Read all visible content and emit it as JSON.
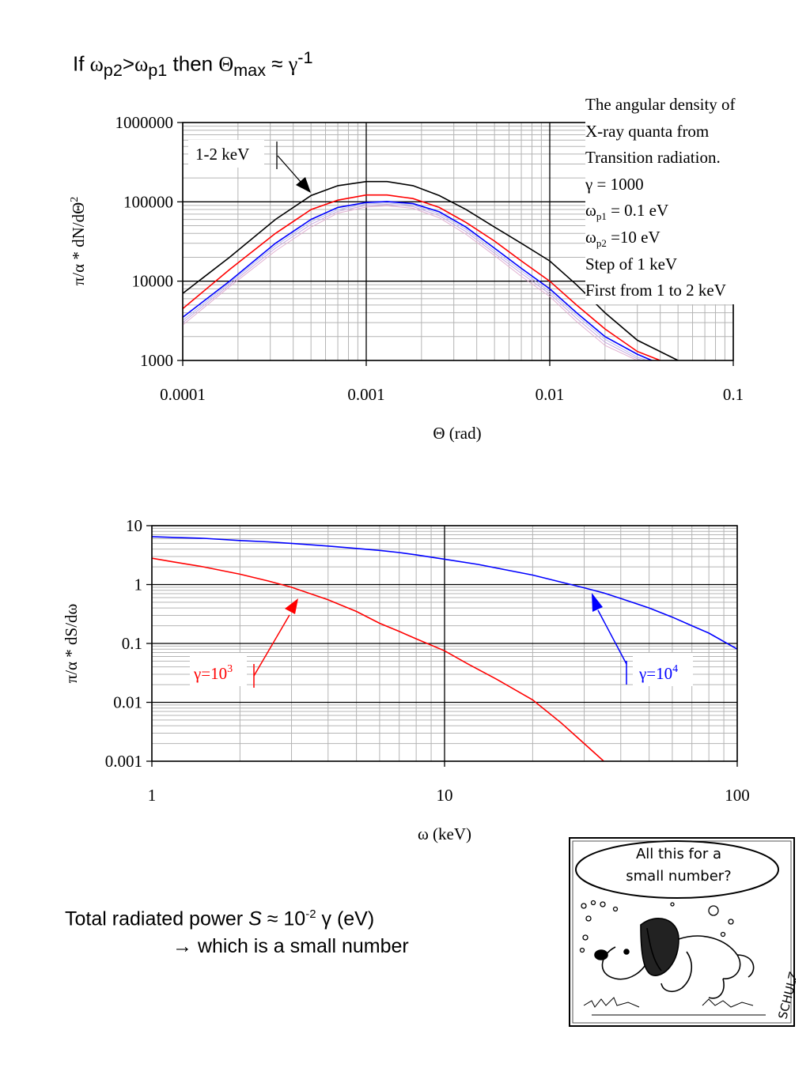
{
  "slide": {
    "title": {
      "prefix": "If ",
      "w": "ω",
      "p2": "p2",
      "gt": ">",
      "p1": "p1",
      "then": " then ",
      "theta": "Θ",
      "max": "max",
      "approx": " ≈ ",
      "gamma": "γ",
      "exp": "-1"
    },
    "footer": {
      "line1": {
        "a": "Total radiated power ",
        "S": "S",
        "b": " ≈ 10",
        "exp": "-2",
        "c": " γ (eV)"
      },
      "line2": "→ which is a small number"
    },
    "cartoon": {
      "bubble_line1": "All this for a",
      "bubble_line2": "small number?",
      "signature": "SCHULZ"
    }
  },
  "chart_data": [
    {
      "type": "line",
      "title": "",
      "xlabel": "Θ (rad)",
      "ylabel_parts": {
        "main": "π/α *  dN/dΘ",
        "exp": "2"
      },
      "xscale": "log",
      "yscale": "log",
      "xlim": [
        0.0001,
        0.1
      ],
      "ylim": [
        1000,
        1000000
      ],
      "xticks": [
        "0.0001",
        "0.001",
        "0.01",
        "0.1"
      ],
      "yticks": [
        "1000",
        "10000",
        "100000",
        "1000000"
      ],
      "grid": true,
      "info_box": {
        "line1": "The angular density of",
        "line2": "X-ray quanta from",
        "line3": "Transition radiation.",
        "line4": "γ = 1000",
        "line5": {
          "w": "ω",
          "sub": "p1",
          "rest": " = 0.1 eV"
        },
        "line6": {
          "w": "ω",
          "sub": "p2",
          "rest": " =10 eV"
        },
        "line7": "Step of 1 keV",
        "line8": "First from 1 to 2  keV"
      },
      "annotation": "1-2 keV",
      "series": [
        {
          "color": "#000000",
          "x": [
            0.0001,
            0.00018,
            0.00032,
            0.0005,
            0.0007,
            0.001,
            0.0013,
            0.0018,
            0.0025,
            0.0035,
            0.005,
            0.007,
            0.01,
            0.014,
            0.02,
            0.03,
            0.05
          ],
          "y": [
            7000,
            20000,
            60000,
            120000,
            160000,
            180000,
            180000,
            160000,
            120000,
            80000,
            48000,
            30000,
            18000,
            9000,
            4000,
            1800,
            1000
          ]
        },
        {
          "color": "#ff0000",
          "x": [
            0.0001,
            0.00018,
            0.00032,
            0.0005,
            0.0007,
            0.001,
            0.0013,
            0.0018,
            0.0025,
            0.0035,
            0.005,
            0.007,
            0.01,
            0.014,
            0.02,
            0.03,
            0.04
          ],
          "y": [
            4500,
            14000,
            40000,
            80000,
            105000,
            122000,
            122000,
            110000,
            85000,
            55000,
            32000,
            18000,
            10000,
            5000,
            2500,
            1300,
            1000
          ]
        },
        {
          "color": "#0000ff",
          "x": [
            0.0001,
            0.00018,
            0.00032,
            0.0005,
            0.0007,
            0.001,
            0.0013,
            0.0018,
            0.0025,
            0.0035,
            0.005,
            0.007,
            0.01,
            0.014,
            0.02,
            0.03,
            0.036
          ],
          "y": [
            3500,
            10000,
            30000,
            60000,
            85000,
            98000,
            101000,
            95000,
            75000,
            48000,
            26000,
            14500,
            8000,
            4000,
            2000,
            1200,
            1000
          ]
        },
        {
          "color": "#b8b8e8",
          "x": [
            0.0001,
            0.00018,
            0.00032,
            0.0005,
            0.0007,
            0.001,
            0.0013,
            0.0018,
            0.0025,
            0.0035,
            0.005,
            0.007,
            0.01,
            0.014,
            0.02,
            0.03,
            0.034
          ],
          "y": [
            3200,
            9500,
            28000,
            56000,
            80000,
            94000,
            97000,
            91000,
            71000,
            45000,
            24000,
            13500,
            7400,
            3700,
            1850,
            1100,
            1000
          ]
        },
        {
          "color": "#c8a8e0",
          "x": [
            0.0001,
            0.00018,
            0.00032,
            0.0005,
            0.0007,
            0.001,
            0.0013,
            0.0018,
            0.0025,
            0.0035,
            0.005,
            0.007,
            0.01,
            0.014,
            0.02,
            0.03,
            0.032
          ],
          "y": [
            3000,
            9000,
            26000,
            52000,
            76000,
            90000,
            93000,
            87000,
            67000,
            42000,
            22500,
            12500,
            6900,
            3400,
            1700,
            1050,
            1000
          ]
        },
        {
          "color": "#e0b0d0",
          "x": [
            0.0001,
            0.00018,
            0.00032,
            0.0005,
            0.0007,
            0.001,
            0.0013,
            0.0018,
            0.0025,
            0.0035,
            0.005,
            0.007,
            0.01,
            0.014,
            0.02,
            0.03
          ],
          "y": [
            2800,
            8500,
            24000,
            48000,
            72000,
            86000,
            89000,
            83000,
            63000,
            39000,
            21000,
            11500,
            6400,
            3100,
            1550,
            1000
          ]
        }
      ]
    },
    {
      "type": "line",
      "title": "",
      "xlabel": "ω (keV)",
      "ylabel": "π/α *  dS/dω",
      "xscale": "log",
      "yscale": "log",
      "xlim": [
        1,
        100
      ],
      "ylim": [
        0.001,
        10
      ],
      "xticks": [
        "1",
        "10",
        "100"
      ],
      "yticks": [
        "0.001",
        "0.01",
        "0.1",
        "1",
        "10"
      ],
      "grid": true,
      "labels": {
        "red": {
          "base": "γ=10",
          "exp": "3"
        },
        "blue": {
          "base": "γ=10",
          "exp": "4"
        }
      },
      "series": [
        {
          "color": "#0000ff",
          "x": [
            1,
            1.2,
            1.5,
            2,
            2.5,
            3,
            4,
            5,
            6,
            7,
            8,
            10,
            13,
            16,
            20,
            25,
            30,
            35,
            40,
            50,
            60,
            70,
            80,
            100
          ],
          "y": [
            6.5,
            6.3,
            6.1,
            5.6,
            5.3,
            5.0,
            4.5,
            4.1,
            3.8,
            3.5,
            3.2,
            2.7,
            2.2,
            1.8,
            1.45,
            1.1,
            0.88,
            0.72,
            0.58,
            0.4,
            0.28,
            0.2,
            0.15,
            0.08
          ]
        },
        {
          "color": "#ff0000",
          "x": [
            1,
            1.2,
            1.5,
            2,
            2.5,
            3,
            4,
            5,
            6,
            7,
            8,
            10,
            12,
            15,
            20,
            25,
            30,
            35
          ],
          "y": [
            2.8,
            2.4,
            2.0,
            1.5,
            1.15,
            0.9,
            0.55,
            0.35,
            0.22,
            0.16,
            0.12,
            0.075,
            0.045,
            0.025,
            0.011,
            0.0045,
            0.002,
            0.001
          ]
        }
      ]
    }
  ]
}
